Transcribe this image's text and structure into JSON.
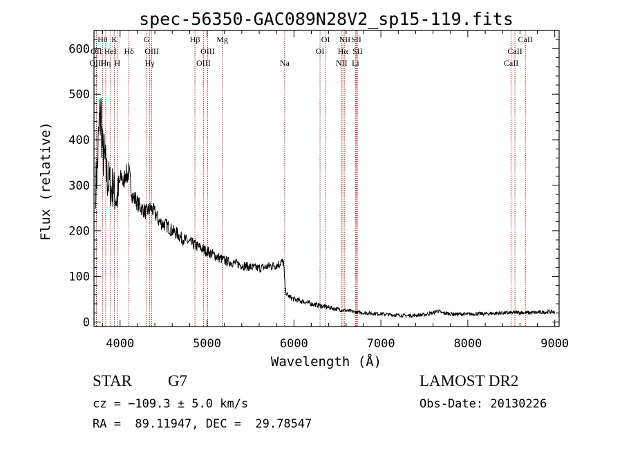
{
  "chart_data": {
    "type": "line",
    "title": "spec-56350-GAC089N28V2_sp15-119.fits",
    "xlabel": "Wavelength (Å)",
    "ylabel": "Flux (relative)",
    "xlim": [
      3700,
      9050
    ],
    "ylim": [
      -10,
      640
    ],
    "xticks": [
      4000,
      5000,
      6000,
      7000,
      8000,
      9000
    ],
    "yticks": [
      0,
      100,
      200,
      300,
      400,
      500,
      600
    ],
    "grid": false,
    "line_color": "#000000",
    "marker_color": "#a01818",
    "series": [
      {
        "x": [
          3720,
          3740,
          3760,
          3780,
          3800,
          3820,
          3840,
          3860,
          3880,
          3900,
          3920,
          3940,
          3960,
          3980,
          4000,
          4020,
          4040,
          4060,
          4080,
          4100,
          4120,
          4140,
          4160,
          4180,
          4200,
          4250,
          4300,
          4350,
          4400,
          4450,
          4500,
          4550,
          4600,
          4650,
          4700,
          4750,
          4800,
          4850,
          4900,
          4950,
          5000,
          5050,
          5100,
          5150,
          5200,
          5300,
          5400,
          5500,
          5600,
          5700,
          5800,
          5850,
          5880,
          5900,
          5920,
          5950,
          6000,
          6100,
          6200,
          6300,
          6400,
          6500,
          6600,
          6700,
          6800,
          6900,
          7000,
          7100,
          7200,
          7300,
          7400,
          7500,
          7600,
          7650,
          7700,
          7800,
          7900,
          8000,
          8100,
          8200,
          8300,
          8400,
          8500,
          8600,
          8700,
          8800,
          8900,
          9000
        ],
        "y": [
          300,
          340,
          430,
          460,
          370,
          360,
          330,
          310,
          305,
          290,
          300,
          280,
          270,
          280,
          310,
          320,
          300,
          330,
          320,
          330,
          305,
          280,
          270,
          270,
          260,
          250,
          240,
          250,
          240,
          220,
          215,
          210,
          200,
          195,
          185,
          180,
          175,
          170,
          165,
          160,
          155,
          150,
          145,
          140,
          135,
          130,
          125,
          120,
          118,
          122,
          125,
          130,
          132,
          70,
          60,
          55,
          50,
          45,
          40,
          36,
          32,
          28,
          25,
          22,
          20,
          19,
          18,
          16,
          15,
          14,
          15,
          16,
          20,
          25,
          20,
          18,
          17,
          17,
          18,
          18,
          19,
          20,
          20,
          21,
          20,
          21,
          22,
          22
        ]
      }
    ],
    "markers": [
      {
        "label": "Hθ",
        "x": 3798,
        "row": 1
      },
      {
        "label": "OII",
        "x": 3727,
        "row": 2
      },
      {
        "label": "OIII",
        "x": 3729,
        "row": 3
      },
      {
        "label": "K",
        "x": 3934,
        "row": 1
      },
      {
        "label": "HeI",
        "x": 3889,
        "row": 2
      },
      {
        "label": "Hη",
        "x": 3835,
        "row": 3
      },
      {
        "label": "H",
        "x": 3969,
        "row": 3
      },
      {
        "label": "Hδ",
        "x": 4102,
        "row": 2
      },
      {
        "label": "G",
        "x": 4305,
        "row": 1
      },
      {
        "label": "OIII",
        "x": 4364,
        "row": 2
      },
      {
        "label": "Hγ",
        "x": 4341,
        "row": 3
      },
      {
        "label": "Hβ",
        "x": 4861,
        "row": 1
      },
      {
        "label": "OIII",
        "x": 5007,
        "row": 2
      },
      {
        "label": "OIII",
        "x": 4959,
        "row": 3
      },
      {
        "label": "Mg",
        "x": 5175,
        "row": 1
      },
      {
        "label": "Na",
        "x": 5893,
        "row": 3
      },
      {
        "label": "OI",
        "x": 6364,
        "row": 1
      },
      {
        "label": "OI",
        "x": 6300,
        "row": 2
      },
      {
        "label": "NII",
        "x": 6584,
        "row": 1
      },
      {
        "label": "SII",
        "x": 6717,
        "row": 1
      },
      {
        "label": "Hα",
        "x": 6563,
        "row": 2
      },
      {
        "label": "SII",
        "x": 6731,
        "row": 2
      },
      {
        "label": "NII",
        "x": 6548,
        "row": 3
      },
      {
        "label": "Li",
        "x": 6708,
        "row": 3
      },
      {
        "label": "CaII",
        "x": 8662,
        "row": 1
      },
      {
        "label": "CaII",
        "x": 8542,
        "row": 2
      },
      {
        "label": "CaII",
        "x": 8498,
        "row": 3
      }
    ]
  },
  "info": {
    "class": "STAR",
    "subclass": "G7",
    "survey": "LAMOST DR2",
    "cz_text": "cz = −109.3 ± 5.0 km/s",
    "obsdate_text": "Obs-Date: 20130226",
    "radec_text": "RA =  89.11947, DEC =  29.78547"
  }
}
